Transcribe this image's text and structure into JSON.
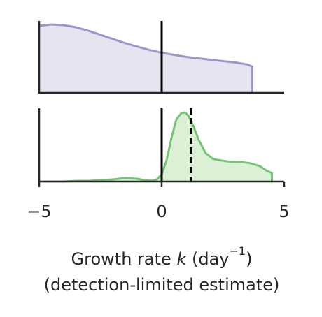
{
  "chart_data": {
    "type": "area",
    "xlabel": {
      "prefix": "Growth rate ",
      "variable": "k",
      "mid": " (day",
      "superscript": "−1",
      "suffix": ")",
      "line2": "(detection-limited estimate)"
    },
    "xlim": [
      -5,
      5
    ],
    "xticks": [
      -5,
      0,
      5
    ],
    "xtick_labels": [
      "−5",
      "0",
      "5"
    ],
    "grid": false,
    "legend": "none",
    "panels": [
      {
        "name": "",
        "color": "#9b97c9",
        "fill": "#e7e4f2",
        "y_max": 1.0,
        "x": [
          -5.0,
          -4.5,
          -4.0,
          -3.5,
          -3.0,
          -2.5,
          -2.0,
          -1.5,
          -1.0,
          -0.5,
          0.0,
          0.5,
          1.0,
          1.5,
          2.0,
          2.5,
          3.0,
          3.5,
          3.7
        ],
        "y": [
          0.97,
          0.99,
          0.98,
          0.95,
          0.9,
          0.84,
          0.78,
          0.72,
          0.67,
          0.62,
          0.58,
          0.55,
          0.52,
          0.5,
          0.48,
          0.46,
          0.44,
          0.41,
          0.38
        ],
        "vlines": [
          {
            "x": 0,
            "style": "solid"
          }
        ]
      },
      {
        "name": "",
        "color": "#74c476",
        "fill": "#dcf0d6",
        "y_max": 1.0,
        "x": [
          -5.0,
          -4.5,
          -4.0,
          -3.5,
          -3.0,
          -2.5,
          -2.0,
          -1.5,
          -1.0,
          -0.7,
          -0.4,
          -0.2,
          0.0,
          0.2,
          0.4,
          0.6,
          0.8,
          0.95,
          1.1,
          1.3,
          1.5,
          1.8,
          2.1,
          2.4,
          2.8,
          3.2,
          3.6,
          4.0,
          4.3,
          4.5
        ],
        "y": [
          0.0,
          0.0,
          0.0,
          0.01,
          0.01,
          0.02,
          0.03,
          0.05,
          0.04,
          0.02,
          0.01,
          0.03,
          0.1,
          0.3,
          0.62,
          0.88,
          0.97,
          0.98,
          0.93,
          0.78,
          0.6,
          0.4,
          0.32,
          0.3,
          0.28,
          0.28,
          0.26,
          0.22,
          0.15,
          0.12
        ],
        "vlines": [
          {
            "x": 0,
            "style": "solid"
          },
          {
            "x": 1.2,
            "style": "dashed"
          }
        ]
      }
    ]
  }
}
